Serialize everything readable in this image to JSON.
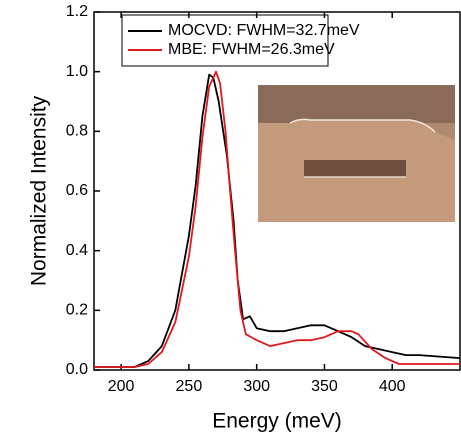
{
  "chart_data": {
    "type": "line",
    "x_label": "Energy (meV)",
    "y_label": "Normalized Intensity",
    "xlim": [
      180,
      450
    ],
    "ylim": [
      0,
      1.2
    ],
    "xticks": [
      200,
      250,
      300,
      350,
      400
    ],
    "yticks": [
      {
        "value": 0,
        "label": "0.0"
      },
      0.2,
      0.4,
      0.6,
      0.8,
      {
        "value": 1,
        "label": "1.0"
      },
      1.2
    ],
    "legend": "upper left",
    "series": [
      {
        "name": "MOCVD: FWHM=32.7meV",
        "color": "#000000",
        "x": [
          180,
          190,
          200,
          210,
          220,
          230,
          240,
          250,
          255,
          260,
          265,
          268,
          272,
          278,
          283,
          286,
          290,
          295,
          300,
          310,
          320,
          330,
          340,
          350,
          360,
          370,
          380,
          390,
          400,
          410,
          420,
          450
        ],
        "values": [
          0.01,
          0.01,
          0.01,
          0.01,
          0.03,
          0.08,
          0.2,
          0.45,
          0.62,
          0.85,
          0.99,
          0.98,
          0.9,
          0.72,
          0.5,
          0.3,
          0.17,
          0.18,
          0.14,
          0.13,
          0.13,
          0.14,
          0.15,
          0.15,
          0.13,
          0.11,
          0.08,
          0.07,
          0.06,
          0.05,
          0.05,
          0.04
        ]
      },
      {
        "name": "MBE: FWHM=26.3meV",
        "color": "#e0191e",
        "x": [
          180,
          190,
          200,
          210,
          220,
          230,
          240,
          250,
          255,
          260,
          265,
          270,
          273,
          277,
          280,
          284,
          288,
          292,
          300,
          310,
          320,
          330,
          340,
          350,
          360,
          370,
          375,
          385,
          395,
          405,
          420,
          450
        ],
        "values": [
          0.01,
          0.01,
          0.01,
          0.01,
          0.02,
          0.06,
          0.16,
          0.38,
          0.55,
          0.78,
          0.95,
          1.0,
          0.96,
          0.8,
          0.62,
          0.4,
          0.2,
          0.12,
          0.1,
          0.08,
          0.09,
          0.1,
          0.1,
          0.11,
          0.13,
          0.13,
          0.12,
          0.07,
          0.04,
          0.02,
          0.02,
          0.02
        ]
      }
    ]
  }
}
